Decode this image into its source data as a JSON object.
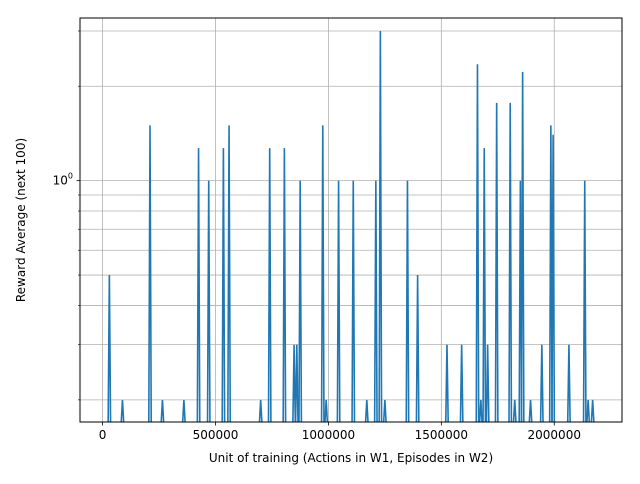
{
  "chart_data": {
    "type": "line",
    "title": "",
    "xlabel": "Unit of training (Actions in W1, Episodes in W2)",
    "ylabel": "Reward Average (next 100)",
    "x_scale": "linear",
    "y_scale": "log",
    "xlim": [
      -100000,
      2300000
    ],
    "ylim": [
      0.17,
      3.3
    ],
    "grid": true,
    "x_ticks": [
      {
        "value": 0,
        "label": "0"
      },
      {
        "value": 500000,
        "label": "500000"
      },
      {
        "value": 1000000,
        "label": "1000000"
      },
      {
        "value": 1500000,
        "label": "1500000"
      },
      {
        "value": 2000000,
        "label": "2000000"
      }
    ],
    "y_major_ticks": [
      {
        "value": 1.0,
        "label": "10⁰"
      }
    ],
    "y_minor_ticks": [
      0.2,
      0.3,
      0.4,
      0.5,
      0.6,
      0.7,
      0.8,
      0.9,
      2.0,
      3.0
    ],
    "series": [
      {
        "name": "",
        "color": "#1f77b4",
        "spikes": [
          [
            30000,
            0.5
          ],
          [
            88000,
            0.2
          ],
          [
            210000,
            1.5
          ],
          [
            265000,
            0.2
          ],
          [
            360000,
            0.2
          ],
          [
            425000,
            1.27
          ],
          [
            470000,
            1.0
          ],
          [
            535000,
            1.27
          ],
          [
            560000,
            1.5
          ],
          [
            700000,
            0.2
          ],
          [
            740000,
            1.27
          ],
          [
            805000,
            1.27
          ],
          [
            848000,
            0.3
          ],
          [
            860000,
            0.3
          ],
          [
            875000,
            1.0
          ],
          [
            975000,
            1.5
          ],
          [
            990000,
            0.2
          ],
          [
            1045000,
            1.0
          ],
          [
            1110000,
            1.0
          ],
          [
            1170000,
            0.2
          ],
          [
            1210000,
            1.0
          ],
          [
            1230000,
            3.0
          ],
          [
            1250000,
            0.2
          ],
          [
            1350000,
            1.0
          ],
          [
            1395000,
            0.5
          ],
          [
            1525000,
            0.3
          ],
          [
            1590000,
            0.3
          ],
          [
            1660000,
            2.35
          ],
          [
            1675000,
            0.2
          ],
          [
            1690000,
            1.27
          ],
          [
            1705000,
            0.3
          ],
          [
            1745000,
            1.77
          ],
          [
            1805000,
            1.77
          ],
          [
            1825000,
            0.2
          ],
          [
            1850000,
            1.0
          ],
          [
            1860000,
            2.22
          ],
          [
            1895000,
            0.2
          ],
          [
            1945000,
            0.3
          ],
          [
            1985000,
            1.5
          ],
          [
            1995000,
            1.4
          ],
          [
            2065000,
            0.3
          ],
          [
            2135000,
            1.0
          ],
          [
            2150000,
            0.2
          ],
          [
            2170000,
            0.2
          ]
        ]
      }
    ]
  }
}
